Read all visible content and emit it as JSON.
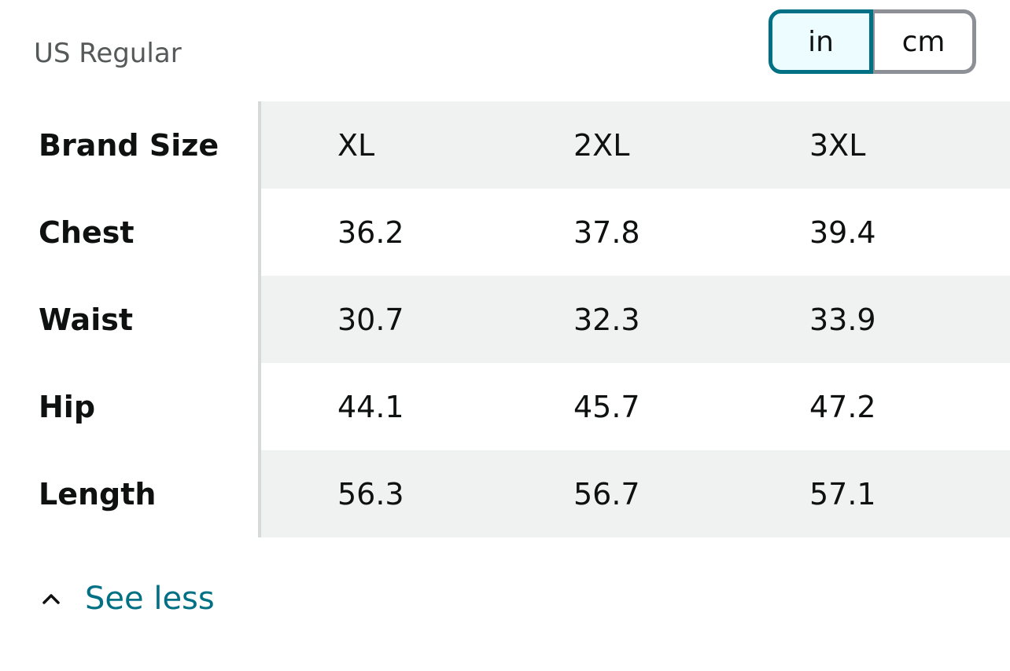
{
  "region_label": "US Regular",
  "unit_toggle": {
    "options": [
      {
        "label": "in",
        "selected": true
      },
      {
        "label": "cm",
        "selected": false
      }
    ]
  },
  "size_table": {
    "header": {
      "label": "Brand Size",
      "values": [
        "XL",
        "2XL",
        "3XL"
      ]
    },
    "rows": [
      {
        "label": "Chest",
        "values": [
          "36.2",
          "37.8",
          "39.4"
        ]
      },
      {
        "label": "Waist",
        "values": [
          "30.7",
          "32.3",
          "33.9"
        ]
      },
      {
        "label": "Hip",
        "values": [
          "44.1",
          "45.7",
          "47.2"
        ]
      },
      {
        "label": "Length",
        "values": [
          "56.3",
          "56.7",
          "57.1"
        ]
      }
    ]
  },
  "see_less": {
    "label": "See less",
    "icon": "chevron-up-icon"
  },
  "colors": {
    "accent": "#007185",
    "selected_bg": "#edfdff",
    "shade": "#f0f2f2",
    "muted_text": "#565959"
  }
}
